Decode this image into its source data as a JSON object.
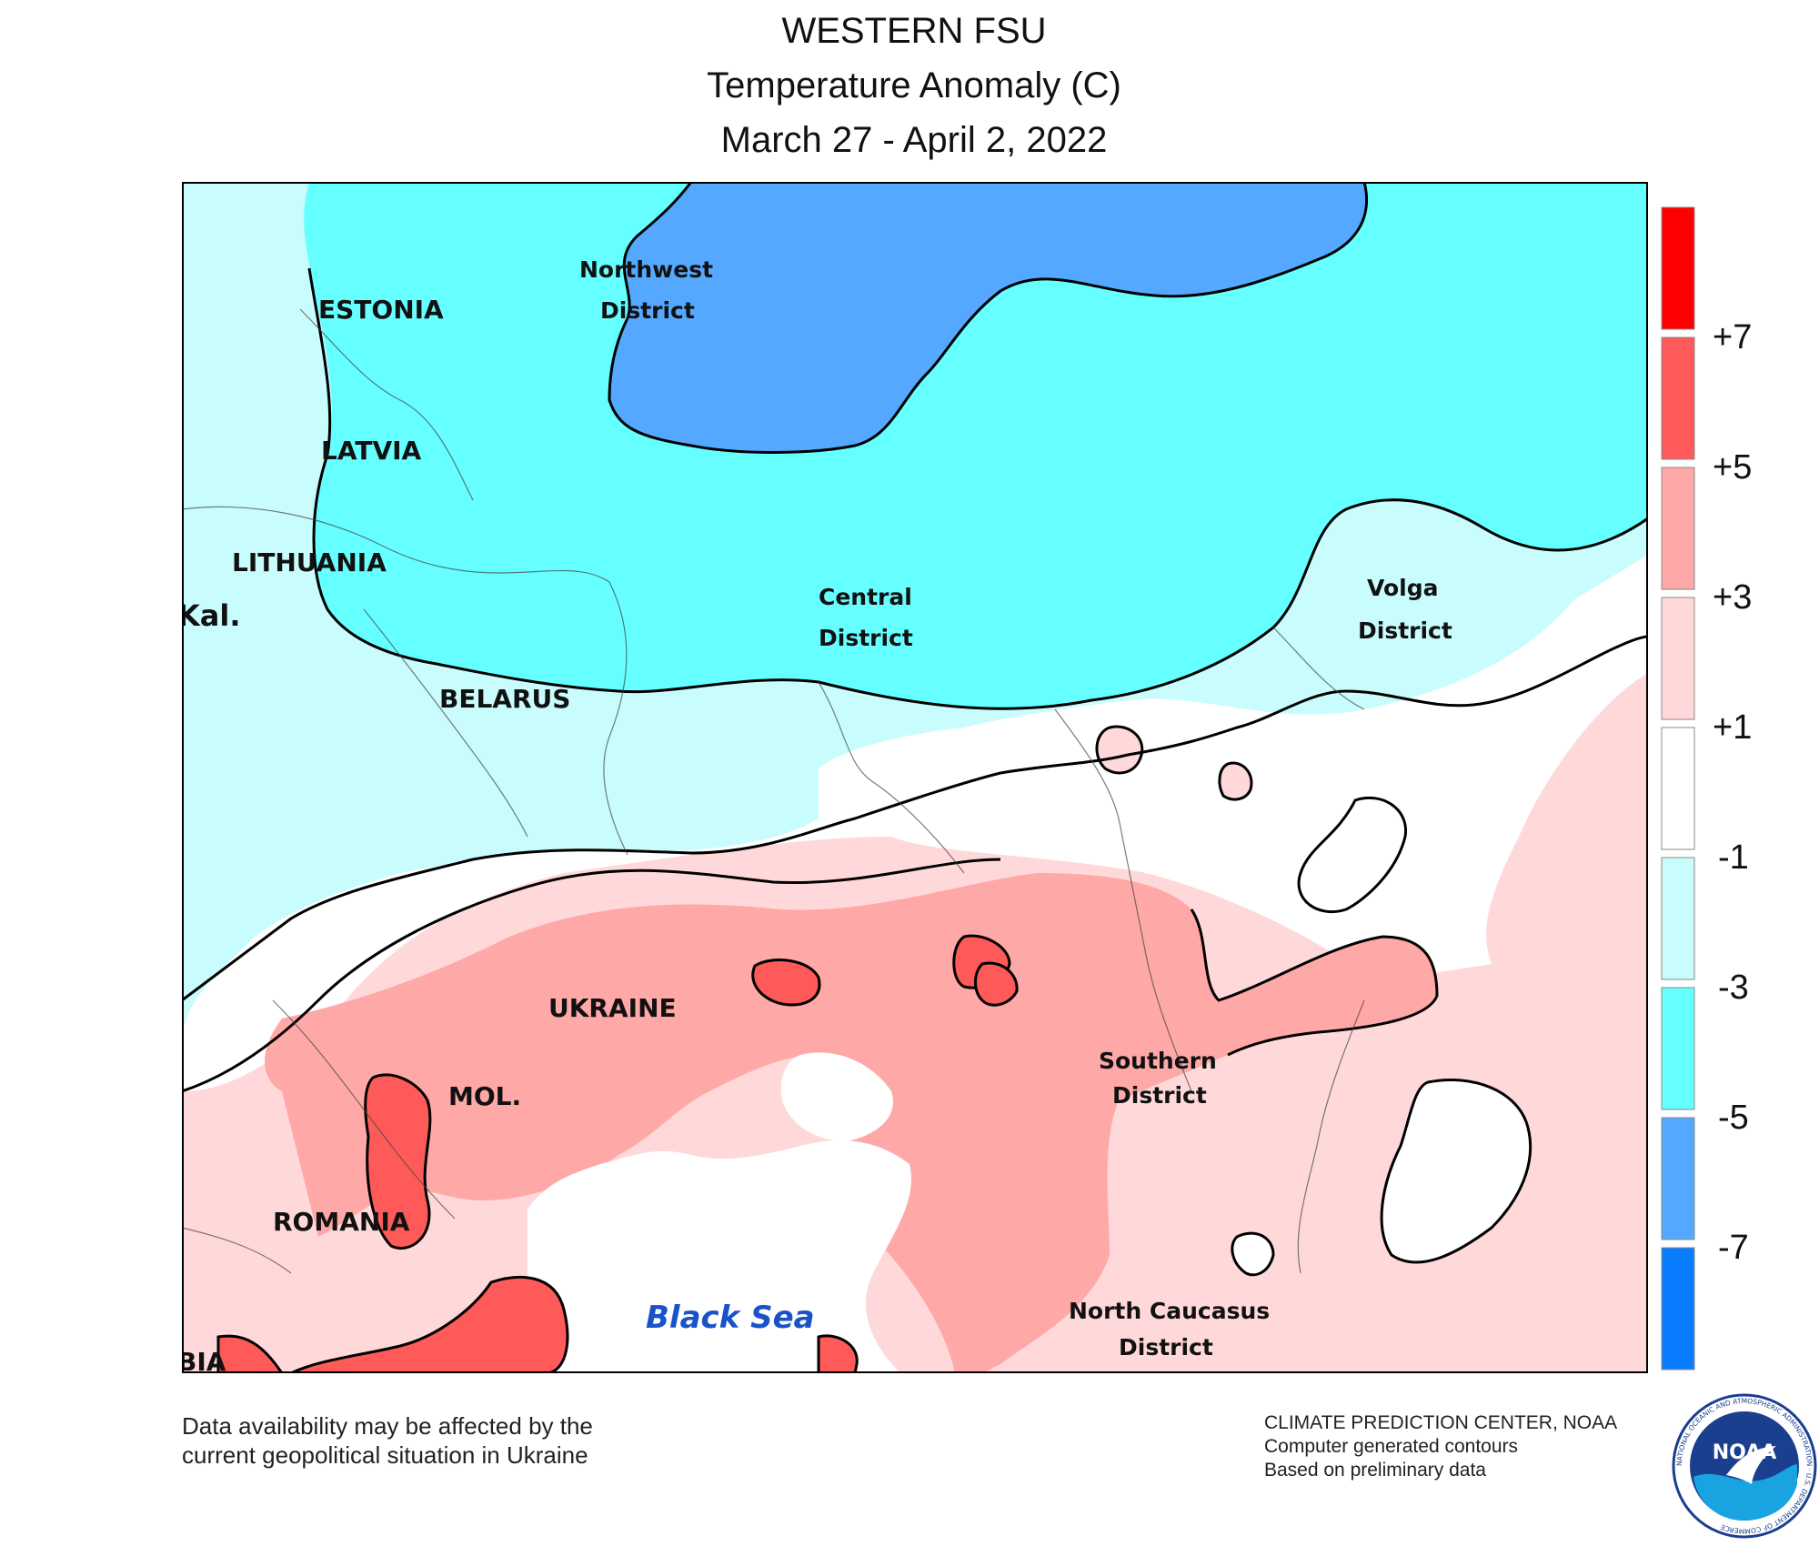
{
  "title": {
    "region": "WESTERN FSU",
    "subtitle": "Temperature Anomaly (C)",
    "dates": "March 27 - April 2, 2022"
  },
  "map": {
    "sea_label": "Black Sea",
    "labels": {
      "estonia": "ESTONIA",
      "latvia": "LATVIA",
      "lithuania": "LITHUANIA",
      "kal": "Kal.",
      "belarus": "BELARUS",
      "ukraine": "UKRAINE",
      "moldova": "MOL.",
      "romania": "ROMANIA",
      "bia": "BIA",
      "nw1": "Northwest",
      "nw2": "District",
      "c1": "Central",
      "c2": "District",
      "v1": "Volga",
      "v2": "District",
      "s1": "Southern",
      "s2": "District",
      "nc1": "North Caucasus",
      "nc2": "District"
    }
  },
  "legend": {
    "tick_labels": [
      "+7",
      "+5",
      "+3",
      "+1",
      "-1",
      "-3",
      "-5",
      "-7"
    ],
    "bins": [
      {
        "range": "above +7",
        "color": "#ff0000"
      },
      {
        "range": "+5 to +7",
        "color": "#ff5a5a"
      },
      {
        "range": "+3 to +5",
        "color": "#ffa8a8"
      },
      {
        "range": "+1 to +3",
        "color": "#ffd9d9"
      },
      {
        "range": "-1 to +1",
        "color": "#ffffff"
      },
      {
        "range": "-3 to -1",
        "color": "#c9fcfc"
      },
      {
        "range": "-5 to -3",
        "color": "#66ffff"
      },
      {
        "range": "-7 to -5",
        "color": "#55a8ff"
      },
      {
        "range": "below -7",
        "color": "#0a7dff"
      }
    ]
  },
  "footer": {
    "note_line1": "Data availability may be affected by the",
    "note_line2": "current geopolitical situation in Ukraine",
    "credit_line1": "CLIMATE PREDICTION CENTER, NOAA",
    "credit_line2": "Computer generated contours",
    "credit_line3": "Based on preliminary data"
  },
  "logo": {
    "center_text": "NOAA",
    "ring_text": "NATIONAL OCEANIC AND ATMOSPHERIC ADMINISTRATION · U.S. DEPARTMENT OF COMMERCE"
  }
}
